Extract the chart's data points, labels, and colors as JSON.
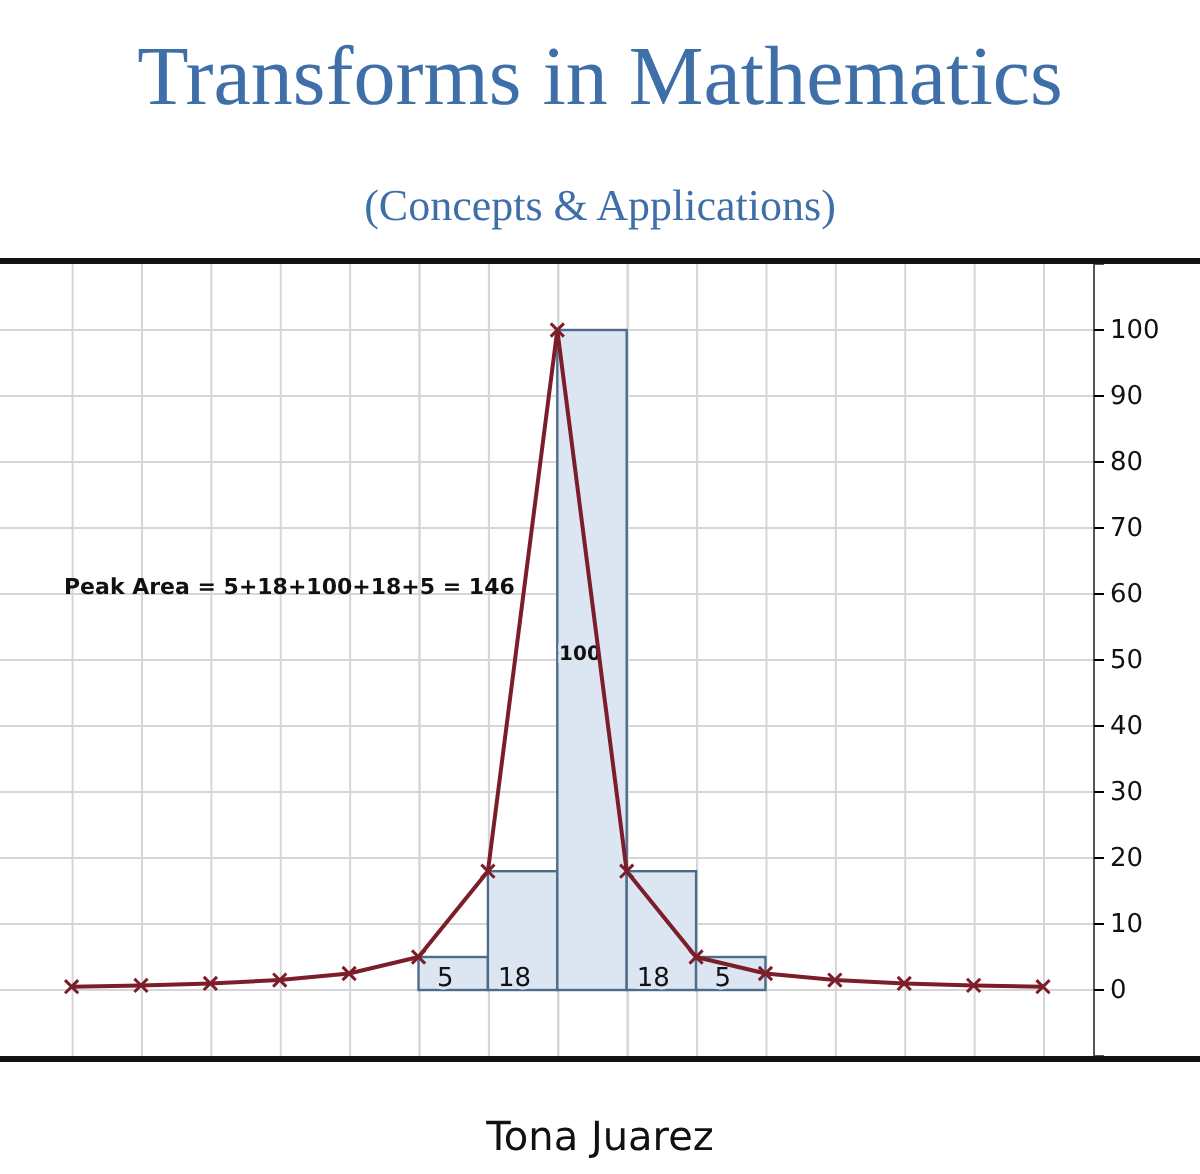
{
  "chart_data": [
    {
      "type": "bar",
      "categories": [
        null,
        null,
        null,
        null,
        null
      ],
      "values": [
        5,
        18,
        100,
        18,
        5
      ],
      "value_labels": [
        "5",
        "18",
        "100",
        "18",
        "5"
      ],
      "color": "#dce6f2",
      "ylim": [
        -10,
        110
      ],
      "yticks": [
        0,
        10,
        20,
        30,
        40,
        50,
        60,
        70,
        80,
        90,
        100
      ],
      "tick_labels": false,
      "grid": true
    },
    {
      "type": "line",
      "title": "Transforms in Mathematics",
      "subtitle": "(Concepts & Applications)",
      "annotations": [
        "Peak Area = 5+18+100+18+5 = 146",
        "Tona Juarez"
      ],
      "categories": [
        null,
        null,
        null,
        null,
        null,
        null,
        null,
        null,
        null,
        null,
        null,
        null,
        null,
        null,
        null
      ],
      "ylim": [
        -10,
        110
      ],
      "yticks": [
        0,
        10,
        20,
        30,
        40,
        50,
        60,
        70,
        80,
        90,
        100
      ],
      "grid": true,
      "tick_labels": "y",
      "marker": "cross",
      "line_style": "solid",
      "series": [
        {
          "color": "#7b1e2a",
          "values": [
            0.5,
            0.7,
            1,
            1.5,
            2.5,
            5,
            18,
            100,
            18,
            5,
            2.5,
            1.5,
            1,
            0.7,
            0.5
          ]
        }
      ]
    }
  ]
}
